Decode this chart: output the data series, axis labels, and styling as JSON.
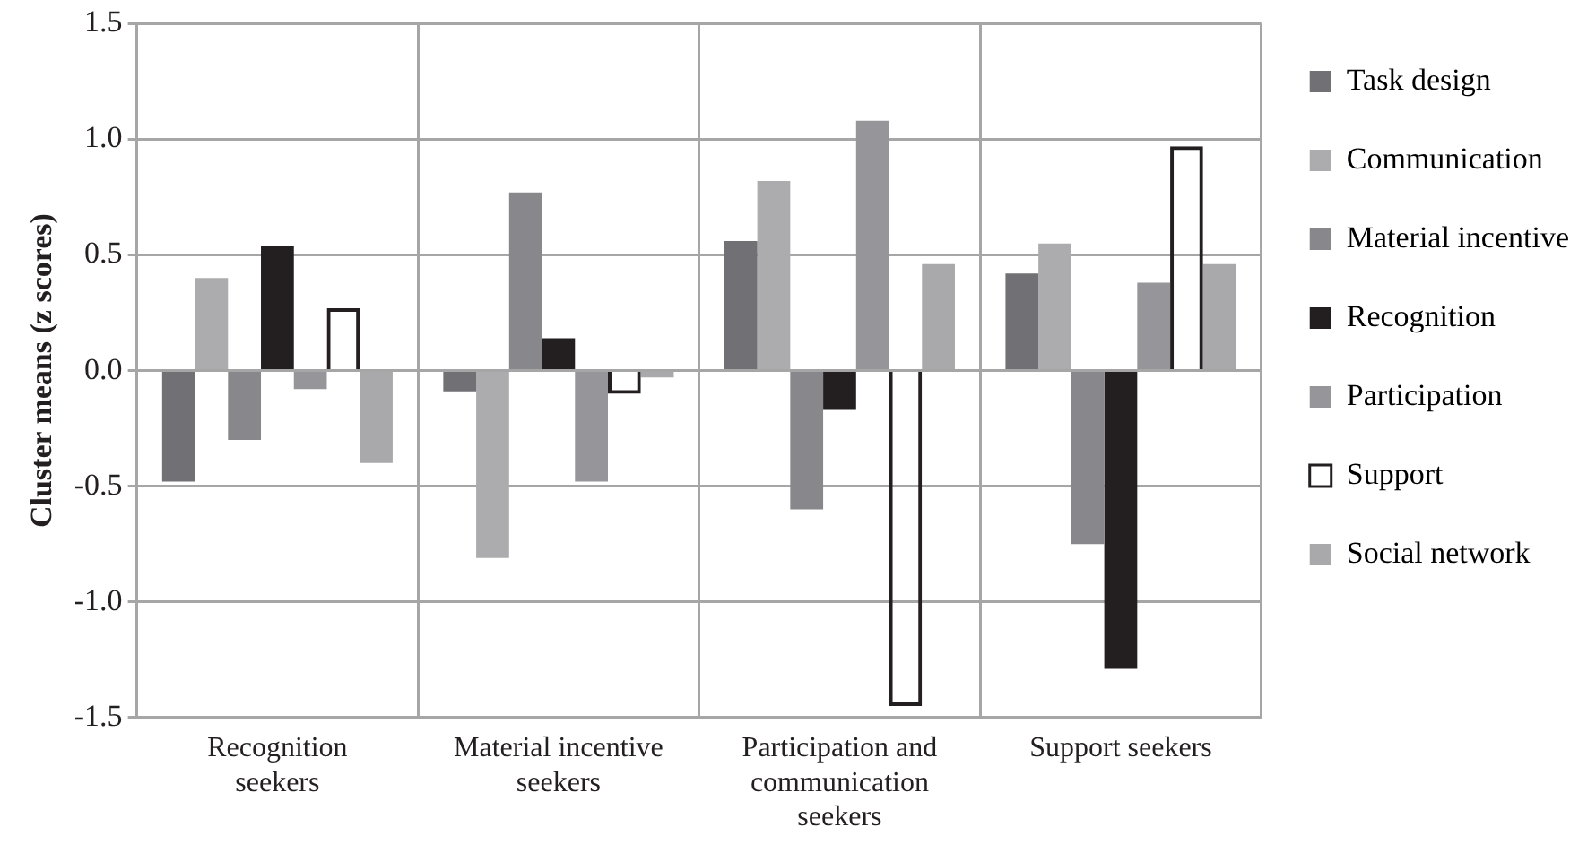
{
  "chart_data": {
    "type": "bar",
    "ylabel": "Cluster means (z scores)",
    "categories": [
      "Recognition seekers",
      "Material incentive seekers",
      "Participation and communication seekers",
      "Support seekers"
    ],
    "series": [
      {
        "name": "Task design",
        "color": "#717175",
        "values": [
          -0.48,
          -0.09,
          0.56,
          0.42
        ]
      },
      {
        "name": "Communication",
        "color": "#acacae",
        "values": [
          0.4,
          -0.81,
          0.82,
          0.55
        ]
      },
      {
        "name": "Material incentive",
        "color": "#88888c",
        "values": [
          -0.3,
          0.77,
          -0.6,
          -0.75
        ]
      },
      {
        "name": "Recognition",
        "color": "#231f20",
        "values": [
          0.54,
          0.14,
          -0.17,
          -1.29
        ]
      },
      {
        "name": "Participation",
        "color": "#96969a",
        "values": [
          -0.08,
          -0.48,
          1.08,
          0.38
        ]
      },
      {
        "name": "Support",
        "color": "#231f20",
        "values": [
          0.27,
          -0.1,
          -1.45,
          0.97
        ]
      },
      {
        "name": "Social network",
        "color": "#a9a9ab",
        "values": [
          -0.4,
          -0.03,
          0.46,
          0.46
        ]
      }
    ],
    "ylim": [
      -1.5,
      1.5
    ],
    "yticks": [
      {
        "value": -1.5,
        "label": "-1.5"
      },
      {
        "value": -1,
        "label": "-1.0"
      },
      {
        "value": -0.5,
        "label": "-0.5"
      },
      {
        "value": 0,
        "label": "0.0"
      },
      {
        "value": 0.5,
        "label": "0.5"
      },
      {
        "value": 1,
        "label": "1.0"
      },
      {
        "value": 1.5,
        "label": "1.5"
      }
    ],
    "grid": true,
    "legend": "right"
  }
}
